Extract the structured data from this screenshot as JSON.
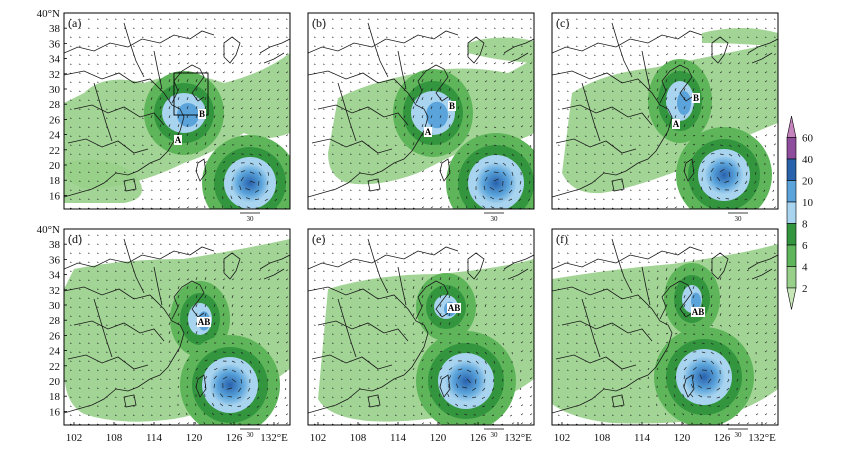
{
  "figure": {
    "panels": [
      {
        "label": "(a)",
        "markers": [
          "A",
          "B"
        ],
        "ref_vector_label": "30",
        "show_box": true
      },
      {
        "label": "(b)",
        "markers": [
          "A",
          "B"
        ],
        "ref_vector_label": "30",
        "show_box": false
      },
      {
        "label": "(c)",
        "markers": [
          "A",
          "B"
        ],
        "ref_vector_label": "30",
        "show_box": false
      },
      {
        "label": "(d)",
        "markers": [
          "AB"
        ],
        "ref_vector_label": "30",
        "show_box": false
      },
      {
        "label": "(e)",
        "markers": [
          "AB"
        ],
        "ref_vector_label": "30",
        "show_box": false
      },
      {
        "label": "(f)",
        "markers": [
          "AB"
        ],
        "ref_vector_label": "30",
        "show_box": false
      }
    ],
    "lat_ticks": [
      "40°N",
      "38",
      "36",
      "34",
      "32",
      "30",
      "28",
      "26",
      "24",
      "22",
      "20",
      "18",
      "16"
    ],
    "lon_ticks": [
      "102",
      "108",
      "114",
      "120",
      "126",
      "132°E"
    ],
    "colorbar": {
      "levels": [
        "2",
        "4",
        "6",
        "8",
        "10",
        "20",
        "40",
        "60"
      ],
      "colors": [
        "#c6e6b8",
        "#98d08a",
        "#5fb55a",
        "#33963f",
        "#a8d4ef",
        "#5ba4db",
        "#2862ad",
        "#8e4d9c",
        "#c583be"
      ]
    },
    "colors": {
      "land_line": "#1a1a1a",
      "vector": "#222222",
      "frame": "#000000"
    }
  }
}
